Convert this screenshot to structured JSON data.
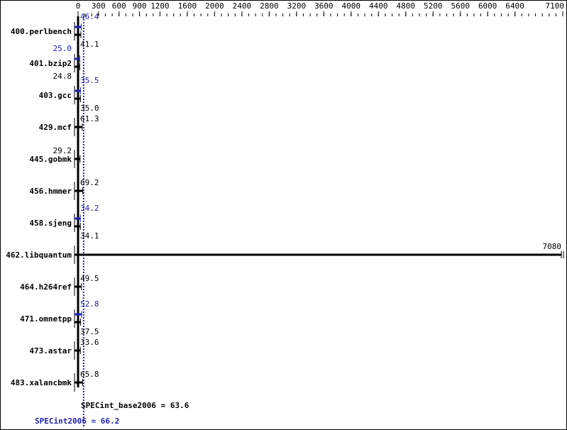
{
  "chart_data": {
    "type": "bar",
    "orientation": "horizontal",
    "xlim": [
      0,
      7100
    ],
    "x_ticks": [
      0,
      300,
      600,
      900,
      1200,
      1600,
      2000,
      2400,
      2800,
      3200,
      3600,
      4000,
      4400,
      4800,
      5200,
      5600,
      6000,
      6400,
      7100
    ],
    "categories": [
      "400.perlbench",
      "401.bzip2",
      "403.gcc",
      "429.mcf",
      "445.gobmk",
      "456.hmmer",
      "458.sjeng",
      "462.libquantum",
      "464.h264ref",
      "471.omnetpp",
      "473.astar",
      "483.xalancbmk"
    ],
    "series": [
      {
        "name": "SPECint_base2006",
        "color": "#000000",
        "values": [
          41.1,
          24.8,
          35.0,
          61.3,
          29.2,
          69.2,
          34.1,
          7080,
          49.5,
          37.5,
          33.6,
          65.8
        ]
      },
      {
        "name": "SPECint2006",
        "color": "#2020b0",
        "values": [
          46.4,
          25.0,
          35.5,
          null,
          null,
          null,
          34.2,
          null,
          null,
          52.8,
          null,
          null
        ]
      }
    ],
    "value_labels_base": [
      "41.1",
      "24.8",
      "35.0",
      "61.3",
      "29.2",
      "69.2",
      "34.1",
      "7080",
      "49.5",
      "37.5",
      "33.6",
      "65.8"
    ],
    "value_labels_peak": [
      "46.4",
      "25.0",
      "35.5",
      "",
      "",
      "",
      "34.2",
      "",
      "",
      "52.8",
      "",
      ""
    ],
    "summary_base": "SPECint_base2006 = 63.6",
    "summary_peak": "SPECint2006 = 66.2",
    "base_mean": 63.6,
    "peak_mean": 66.2
  }
}
